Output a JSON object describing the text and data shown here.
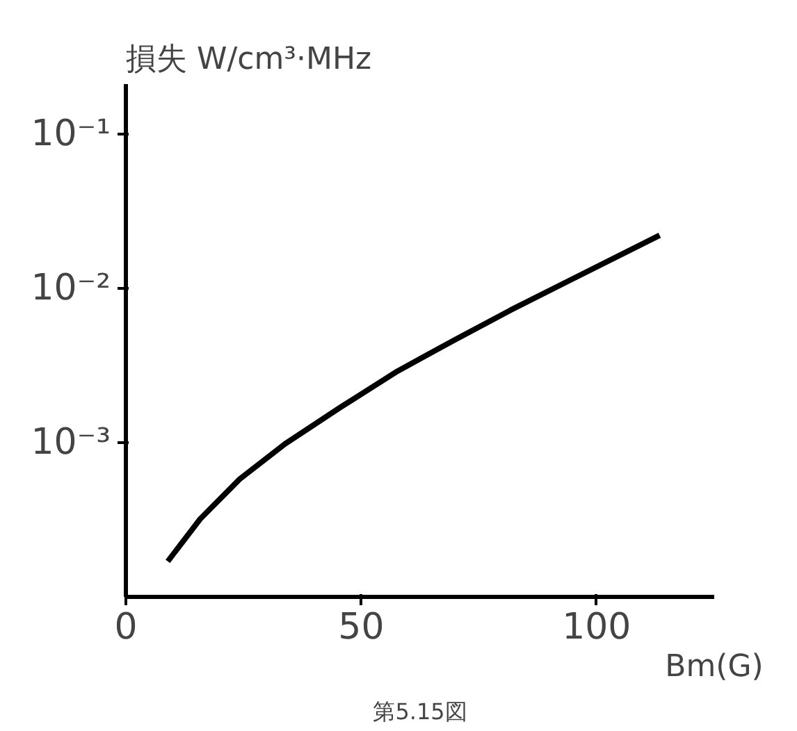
{
  "chart_data": {
    "type": "line",
    "xlabel": "Bm(G)",
    "ylabel": "損失 W/cm³·MHz",
    "x": [
      8.9,
      15.8,
      24.2,
      33.8,
      45.7,
      57.7,
      69.7,
      81.7,
      93.7,
      113.4
    ],
    "series": [
      {
        "color": "#000000",
        "values": [
          0.00017,
          0.00032,
          0.00058,
          0.00098,
          0.0017,
          0.0029,
          0.0046,
          0.0072,
          0.011,
          0.022
        ]
      }
    ],
    "xlim": [
      0,
      125
    ],
    "ylim": [
      0.0001,
      0.21
    ],
    "xticks": [
      0,
      50,
      100
    ],
    "yticks": [
      {
        "value": 0.1,
        "label": "10⁻¹"
      },
      {
        "value": 0.01,
        "label": "10⁻²"
      },
      {
        "value": 0.001,
        "label": "10⁻³"
      }
    ],
    "log": "y",
    "grid": false,
    "marker": "none",
    "line_style": "solid",
    "annotations": [
      "第5.15図"
    ]
  }
}
